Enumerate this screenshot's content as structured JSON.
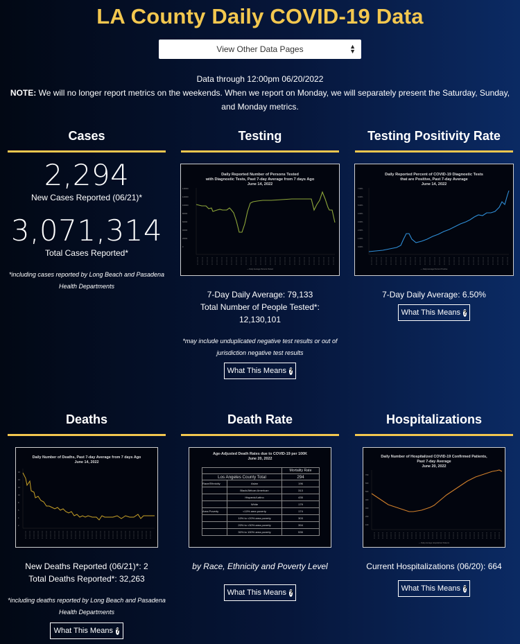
{
  "header": {
    "title": "LA County Daily COVID-19 Data",
    "select_label": "View Other Data Pages",
    "data_through": "Data through 12:00pm 06/20/2022",
    "note_label": "NOTE:",
    "note_text": " We will no longer report metrics on the weekends. When we report on Monday, we will separately present the Saturday, Sunday, and Monday metrics."
  },
  "cases": {
    "heading": "Cases",
    "new_cases": "2,294",
    "new_cases_label": "New Cases Reported (06/21)*",
    "total_cases": "3,071,314",
    "total_cases_label": "Total Cases Reported*",
    "footnote": "*including cases reported by Long Beach and Pasadena Health Departments"
  },
  "testing": {
    "heading": "Testing",
    "chart_title": "Daily Reported Number of Persons Tested with Diagnostic Tests, Past 7-day Average from 7 days Ago June 14, 2022",
    "avg": "7-Day Daily Average: 79,133",
    "total_label": "Total Number of People Tested*:",
    "total": "12,130,101",
    "footnote": "*may include unduplicated negative test results or out of jurisdiction negative test results",
    "button": "What This Means"
  },
  "positivity": {
    "heading": "Testing Positivity Rate",
    "chart_title": "Daily Reported Percent of COVID-19 Diagnostic Tests that are Positive, Past 7-day Average June 14, 2022",
    "avg": "7-Day Daily Average: 6.50%",
    "button": "What This Means"
  },
  "deaths": {
    "heading": "Deaths",
    "chart_title": "Daily Number of Deaths, Past 7-day Average from 7 days Ago June 14, 2022",
    "new_deaths": "New Deaths Reported (06/21)*: 2",
    "total_deaths": "Total Deaths Reported*: 32,263",
    "footnote": "*including deaths reported by Long Beach and Pasadena Health Departments",
    "button": "What This Means"
  },
  "death_rate": {
    "heading": "Death Rate",
    "chart_title": "Age-Adjusted Death Rates due to COVID-19 per 100K June 20, 2022",
    "table_header": "Mortality Rate",
    "county_label": "Los Angeles County Total",
    "county_value": "294",
    "rows": [
      {
        "group": "Race/Ethnicity",
        "label": "Asian",
        "value": "196"
      },
      {
        "group": "",
        "label": "Black/African American",
        "value": "313"
      },
      {
        "group": "",
        "label": "Hispanic/Latino",
        "value": "435"
      },
      {
        "group": "",
        "label": "White",
        "value": "179"
      },
      {
        "group": "Area Poverty",
        "label": "<10% area poverty",
        "value": "174"
      },
      {
        "group": "",
        "label": "10% to <20% area poverty",
        "value": "303"
      },
      {
        "group": "",
        "label": "20% to <30% area poverty",
        "value": "394"
      },
      {
        "group": "",
        "label": "30% to 100% area poverty",
        "value": "535"
      }
    ],
    "caption": "by Race, Ethnicity and Poverty Level",
    "button": "What This Means"
  },
  "hospitalizations": {
    "heading": "Hospitalizations",
    "chart_title": "Daily Number of Hospitalized COVID-19 Confirmed Patients, Past 7-day Average June 20, 2022",
    "current": "Current Hospitalizations (06/20): 664",
    "button": "What This Means"
  },
  "colors": {
    "accent": "#f3c74f",
    "testing_line": "#8fa83a",
    "positivity_line": "#2f8fd8",
    "deaths_line": "#c9a227",
    "hosp_line": "#d1802b"
  },
  "icons": {
    "help": "question-circle-icon",
    "select_caret": "up-down-caret-icon"
  }
}
